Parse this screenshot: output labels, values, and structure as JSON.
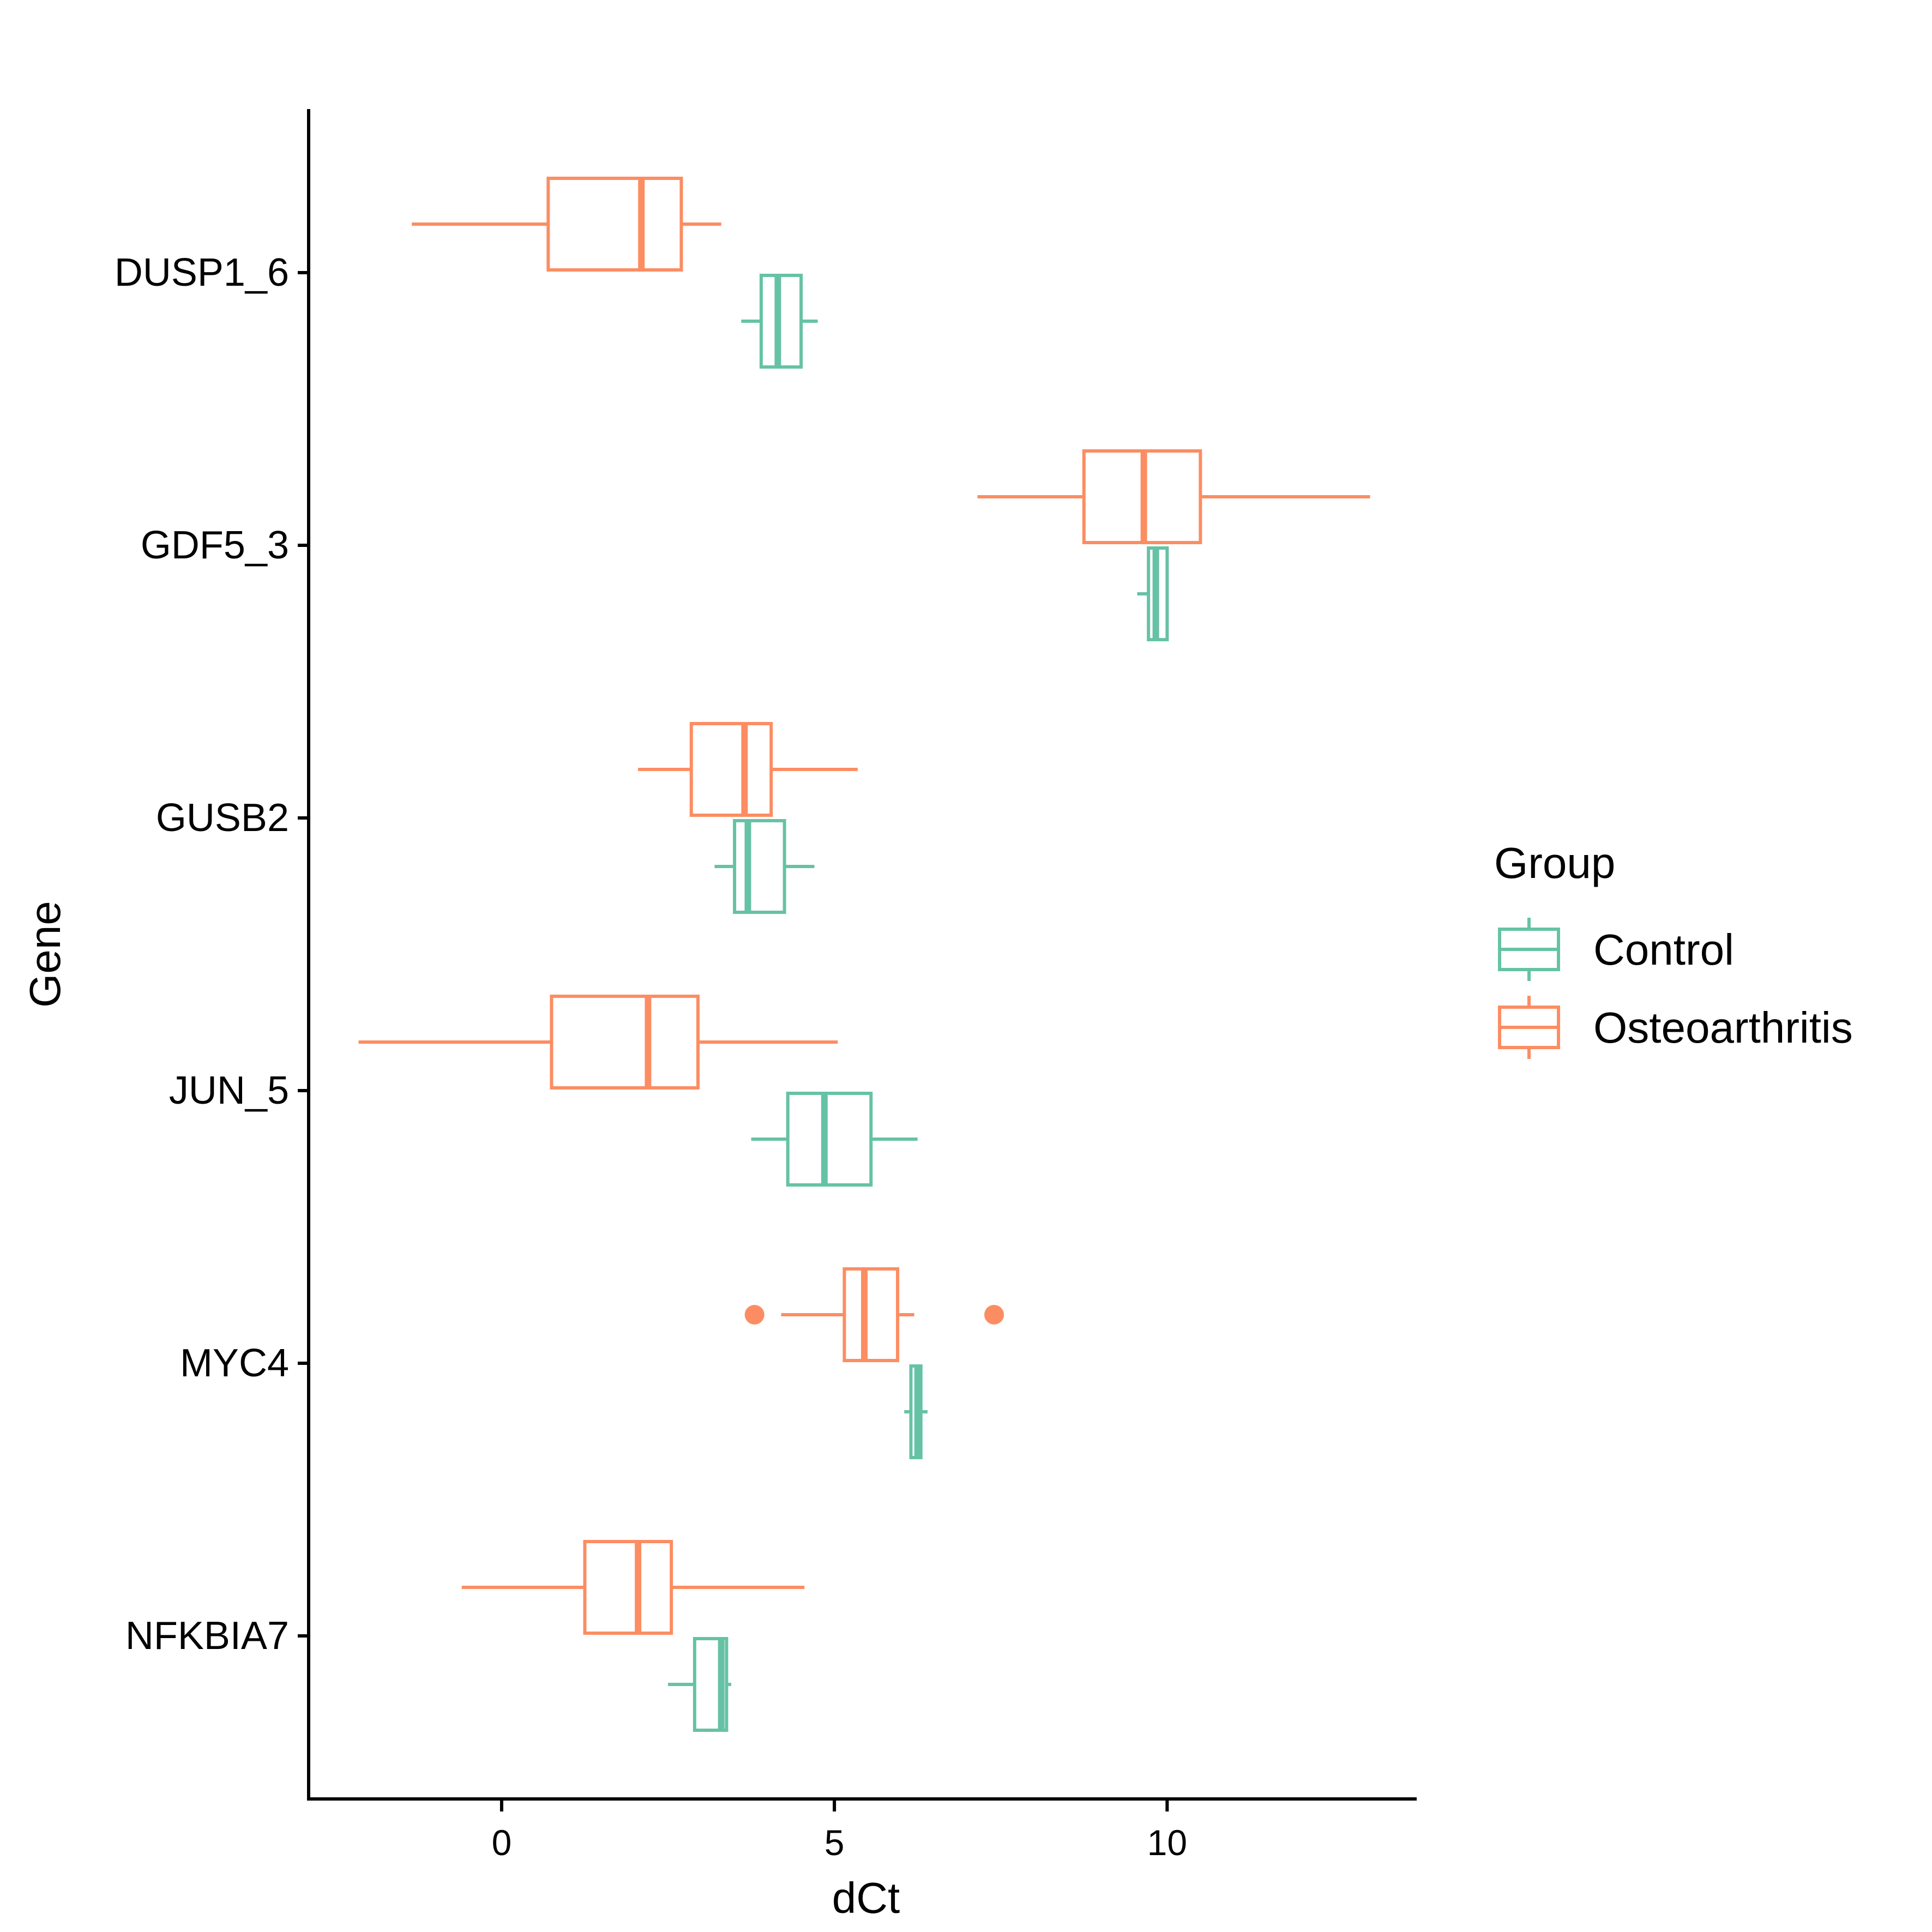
{
  "chart_data": {
    "type": "boxplot",
    "orientation": "horizontal",
    "xlabel": "dCt",
    "ylabel": "Gene",
    "xlim": [
      -2.9,
      13.75
    ],
    "x_ticks": [
      0,
      5,
      10
    ],
    "grid": false,
    "legend_position": "right",
    "legend_title": "Group",
    "categories": [
      "DUSP1_6",
      "GDF5_3",
      "GUSB2",
      "JUN_5",
      "MYC4",
      "NFKBIA7"
    ],
    "series": [
      {
        "name": "Control",
        "color": "#66C2A5",
        "boxes": [
          {
            "category": "DUSP1_6",
            "whisker_low": 3.6,
            "q1": 3.9,
            "median": 4.15,
            "q3": 4.5,
            "whisker_high": 4.75,
            "outliers": []
          },
          {
            "category": "GDF5_3",
            "whisker_low": 9.55,
            "q1": 9.72,
            "median": 9.83,
            "q3": 10.0,
            "whisker_high": 10.0,
            "outliers": []
          },
          {
            "category": "GUSB2",
            "whisker_low": 3.2,
            "q1": 3.5,
            "median": 3.7,
            "q3": 4.25,
            "whisker_high": 4.7,
            "outliers": []
          },
          {
            "category": "JUN_5",
            "whisker_low": 3.75,
            "q1": 4.3,
            "median": 4.85,
            "q3": 5.55,
            "whisker_high": 6.25,
            "outliers": []
          },
          {
            "category": "MYC4",
            "whisker_low": 6.05,
            "q1": 6.15,
            "median": 6.25,
            "q3": 6.3,
            "whisker_high": 6.4,
            "outliers": []
          },
          {
            "category": "NFKBIA7",
            "whisker_low": 2.5,
            "q1": 2.9,
            "median": 3.3,
            "q3": 3.38,
            "whisker_high": 3.45,
            "outliers": []
          }
        ]
      },
      {
        "name": "Osteoarthritis",
        "color": "#FC8D62",
        "boxes": [
          {
            "category": "DUSP1_6",
            "whisker_low": -1.35,
            "q1": 0.7,
            "median": 2.1,
            "q3": 2.7,
            "whisker_high": 3.3,
            "outliers": []
          },
          {
            "category": "GDF5_3",
            "whisker_low": 7.15,
            "q1": 8.75,
            "median": 9.65,
            "q3": 10.5,
            "whisker_high": 13.05,
            "outliers": []
          },
          {
            "category": "GUSB2",
            "whisker_low": 2.05,
            "q1": 2.85,
            "median": 3.65,
            "q3": 4.05,
            "whisker_high": 5.35,
            "outliers": []
          },
          {
            "category": "JUN_5",
            "whisker_low": -2.15,
            "q1": 0.75,
            "median": 2.2,
            "q3": 2.95,
            "whisker_high": 5.05,
            "outliers": []
          },
          {
            "category": "MYC4",
            "whisker_low": 4.2,
            "q1": 5.15,
            "median": 5.45,
            "q3": 5.95,
            "whisker_high": 6.2,
            "outliers": [
              3.8,
              7.4
            ]
          },
          {
            "category": "NFKBIA7",
            "whisker_low": -0.6,
            "q1": 1.25,
            "median": 2.05,
            "q3": 2.55,
            "whisker_high": 4.55,
            "outliers": []
          }
        ]
      }
    ]
  }
}
